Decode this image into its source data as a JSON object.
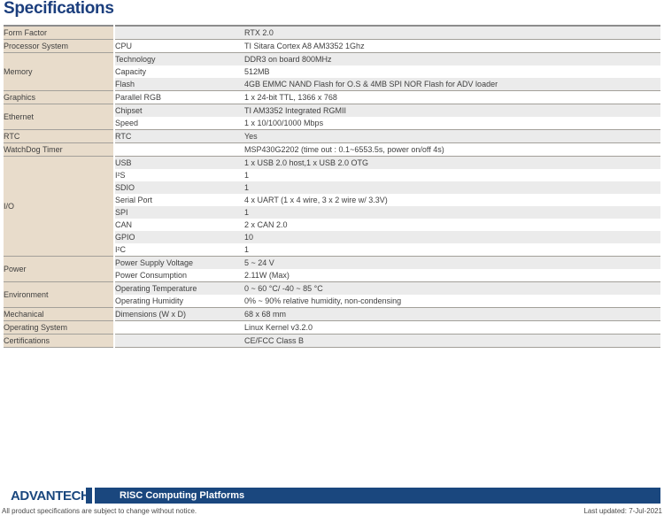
{
  "page": {
    "title": "Specifications",
    "colors": {
      "title_navy": "#1b3e7d",
      "banner_navy": "#1a477e",
      "category_beige": "#e8dccb",
      "stripe_gray": "#ebebeb",
      "separator_gray": "#a3a09a"
    },
    "footer": {
      "logo_text": "ADVANTECH",
      "banner_text": "RISC Computing Platforms",
      "disclaimer": "All product specifications are subject to change without notice.",
      "last_updated": "Last updated: 7-Jul-2021"
    }
  },
  "spec_table": {
    "groups": [
      {
        "category": "Form Factor",
        "rows": [
          {
            "item": "",
            "value": "RTX 2.0"
          }
        ]
      },
      {
        "category": "Processor System",
        "rows": [
          {
            "item": "CPU",
            "value": "TI Sitara Cortex A8 AM3352 1Ghz"
          }
        ]
      },
      {
        "category": "Memory",
        "rows": [
          {
            "item": "Technology",
            "value": "DDR3 on board 800MHz"
          },
          {
            "item": "Capacity",
            "value": "512MB"
          },
          {
            "item": "Flash",
            "value": "4GB EMMC NAND Flash for O.S & 4MB SPI NOR Flash for ADV loader"
          }
        ]
      },
      {
        "category": "Graphics",
        "rows": [
          {
            "item": "Parallel RGB",
            "value": "1 x 24-bit TTL, 1366 x 768"
          }
        ]
      },
      {
        "category": "Ethernet",
        "rows": [
          {
            "item": "Chipset",
            "value": "TI AM3352 Integrated RGMII"
          },
          {
            "item": "Speed",
            "value": "1 x 10/100/1000 Mbps"
          }
        ]
      },
      {
        "category": "RTC",
        "rows": [
          {
            "item": "RTC",
            "value": "Yes"
          }
        ]
      },
      {
        "category": "WatchDog Timer",
        "rows": [
          {
            "item": "",
            "value": "MSP430G2202 (time out : 0.1~6553.5s, power on/off 4s)"
          }
        ]
      },
      {
        "category": "I/O",
        "rows": [
          {
            "item": "USB",
            "value": "1 x USB 2.0 host,1 x USB 2.0 OTG"
          },
          {
            "item": "I²S",
            "value": "1"
          },
          {
            "item": "SDIO",
            "value": "1"
          },
          {
            "item": "Serial Port",
            "value": "4 x UART (1 x 4 wire, 3 x 2 wire w/ 3.3V)"
          },
          {
            "item": "SPI",
            "value": "1"
          },
          {
            "item": "CAN",
            "value": "2 x CAN 2.0"
          },
          {
            "item": "GPIO",
            "value": "10"
          },
          {
            "item": "I²C",
            "value": "1"
          }
        ]
      },
      {
        "category": "Power",
        "rows": [
          {
            "item": "Power Supply Voltage",
            "value": "5 ~ 24 V"
          },
          {
            "item": "Power Consumption",
            "value": "2.11W (Max)"
          }
        ]
      },
      {
        "category": "Environment",
        "rows": [
          {
            "item": "Operating Temperature",
            "value": "0 ~ 60 °C/ -40 ~ 85 °C"
          },
          {
            "item": "Operating Humidity",
            "value": "0% ~ 90% relative humidity, non-condensing"
          }
        ]
      },
      {
        "category": "Mechanical",
        "rows": [
          {
            "item": "Dimensions (W x D)",
            "value": "68 x 68 mm"
          }
        ]
      },
      {
        "category": "Operating System",
        "rows": [
          {
            "item": "",
            "value": "Linux Kernel v3.2.0"
          }
        ]
      },
      {
        "category": "Certifications",
        "rows": [
          {
            "item": "",
            "value": "CE/FCC Class B"
          }
        ]
      }
    ]
  }
}
